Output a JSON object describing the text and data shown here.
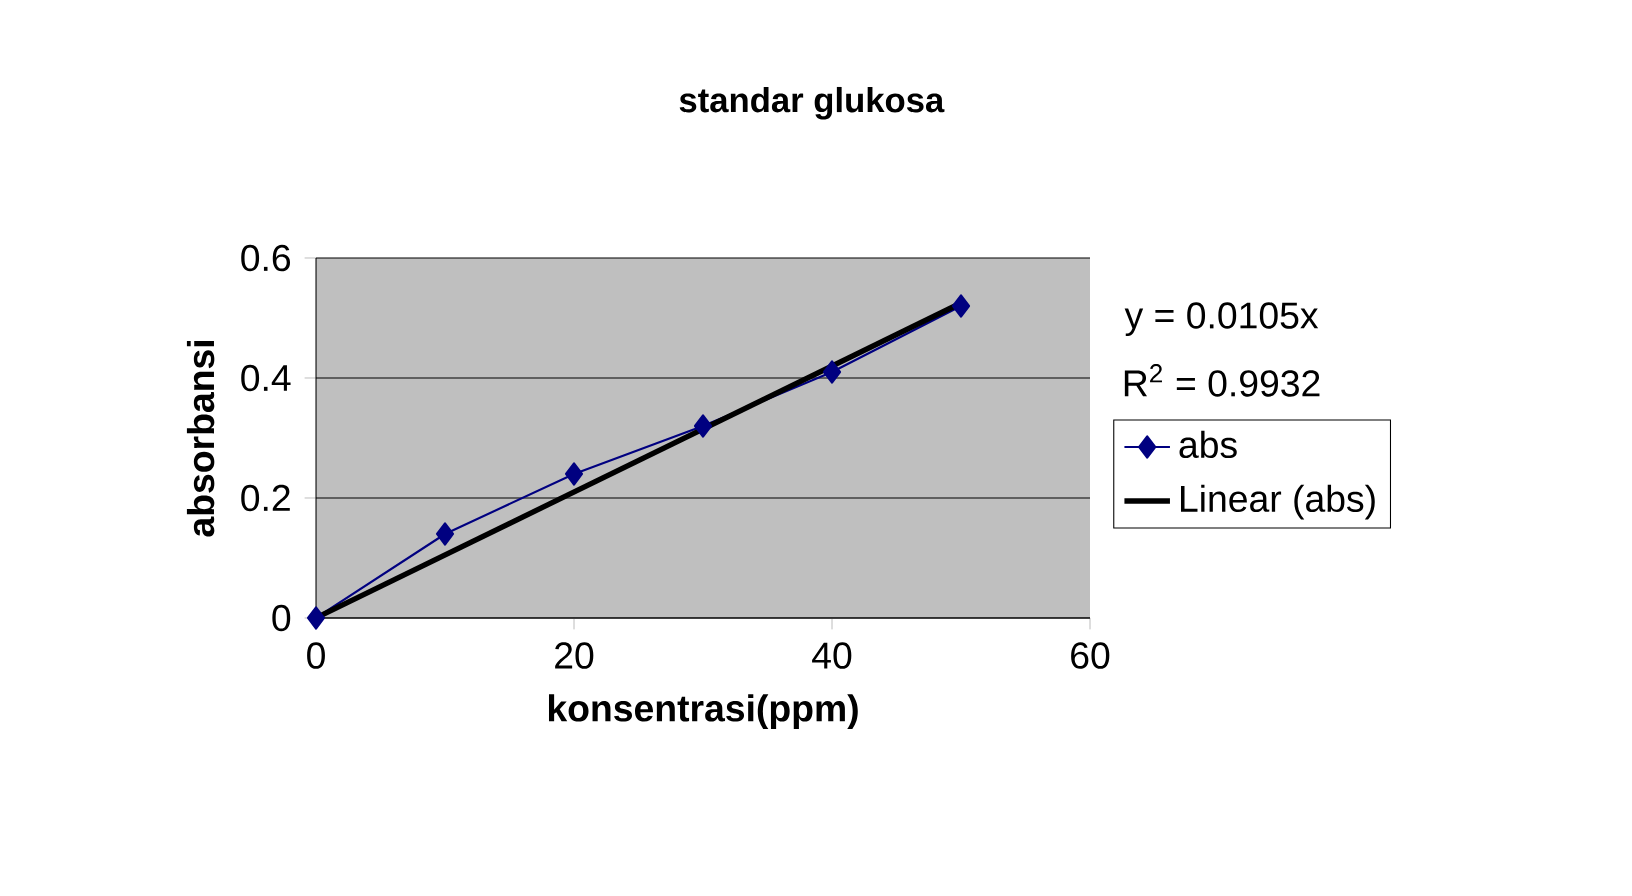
{
  "chart_data": {
    "type": "line",
    "title": "standar glukosa",
    "xlabel": "konsentrasi(ppm)",
    "ylabel": "absorbansi",
    "x": [
      0,
      10,
      20,
      30,
      40,
      50
    ],
    "series": [
      {
        "name": "abs",
        "color": "#000080",
        "values": [
          0,
          0.14,
          0.24,
          0.32,
          0.41,
          0.52
        ],
        "marker": "diamond"
      },
      {
        "name": "Linear (abs)",
        "color": "#000000",
        "x": [
          0,
          50
        ],
        "values": [
          0,
          0.525
        ],
        "marker": "none"
      }
    ],
    "annotations": [
      "y = 0.0105x",
      "R$^{2}$ = 0.9932"
    ],
    "xlim": [
      0,
      60
    ],
    "xticks": [
      0,
      20,
      40,
      60
    ],
    "ylim": [
      0,
      0.6
    ],
    "yticks": [
      0,
      0.2,
      0.4,
      0.6
    ],
    "grid": "y",
    "legend": "right"
  }
}
